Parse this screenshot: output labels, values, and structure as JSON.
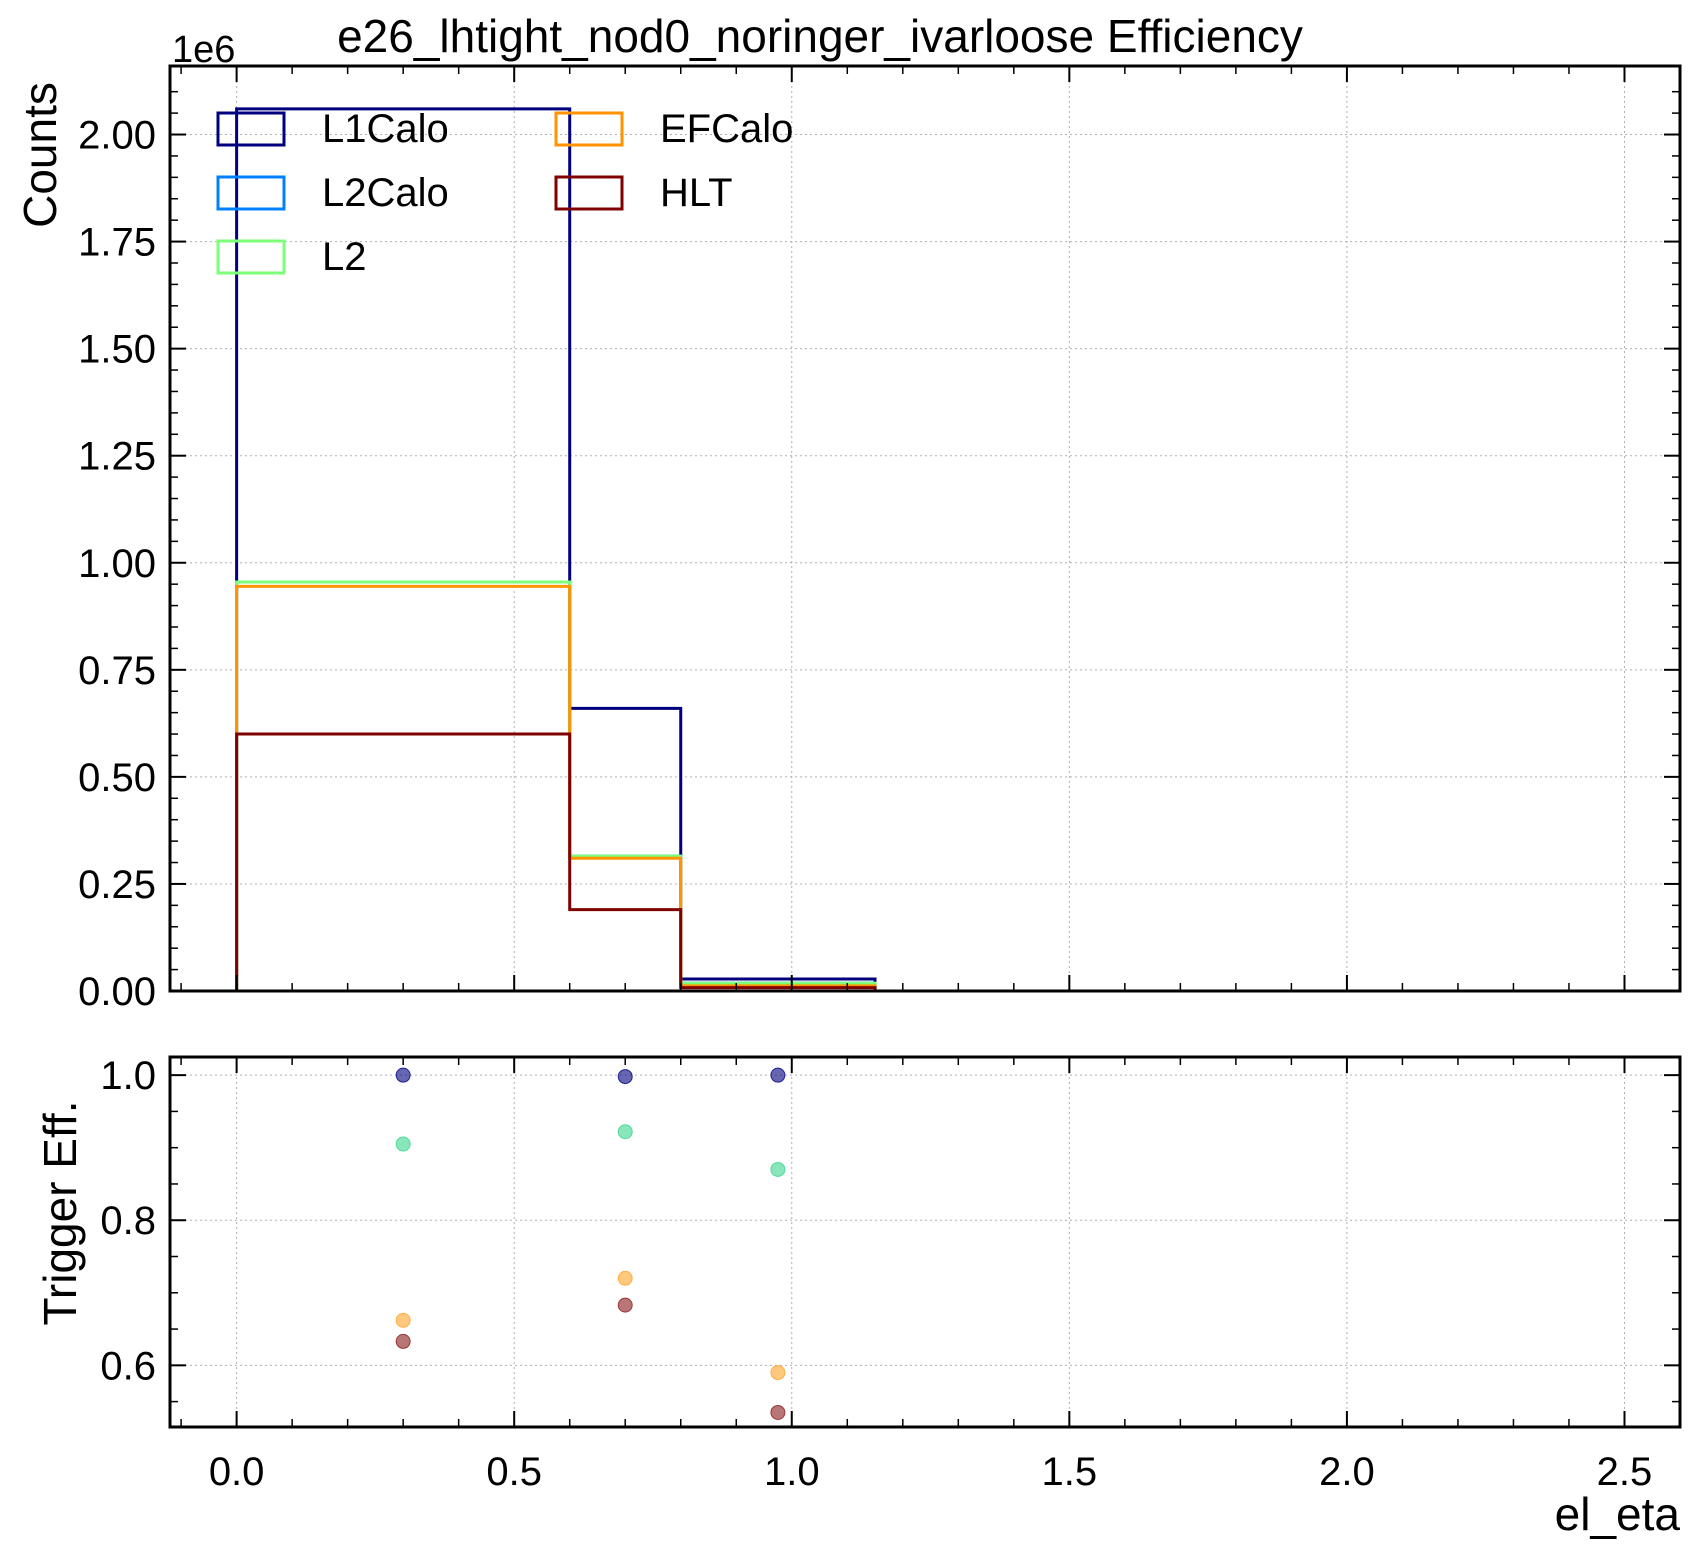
{
  "chart_data": [
    {
      "panel": "top",
      "type": "step-histogram",
      "title": "e26_lhtight_nod0_noringer_ivarloose Efficiency",
      "ylabel": "Counts",
      "xlabel": "",
      "offset_label": "1e6",
      "xlim": [
        -0.12,
        2.6
      ],
      "ylim": [
        0,
        2.16
      ],
      "y_scale_factor": 1000000,
      "grid": true,
      "legend_position": "upper left, 2 columns",
      "xticks": [
        "0.0",
        "0.5",
        "1.0",
        "1.5",
        "2.0",
        "2.5"
      ],
      "yticks": [
        "0.00",
        "0.25",
        "0.50",
        "0.75",
        "1.00",
        "1.25",
        "1.50",
        "1.75",
        "2.00"
      ],
      "bin_edges": [
        0.0,
        0.6,
        0.8,
        1.15
      ],
      "series": [
        {
          "name": "L1Calo",
          "color": "#00007f",
          "values": [
            2.06,
            0.66,
            0.028
          ]
        },
        {
          "name": "L2Calo",
          "color": "#0080ff",
          "values": [
            0.955,
            0.315,
            0.018
          ]
        },
        {
          "name": "L2",
          "color": "#7cff79",
          "values": [
            0.955,
            0.315,
            0.018
          ]
        },
        {
          "name": "EFCalo",
          "color": "#ff9400",
          "values": [
            0.945,
            0.31,
            0.012
          ]
        },
        {
          "name": "HLT",
          "color": "#7f0000",
          "values": [
            0.6,
            0.19,
            0.008
          ]
        }
      ]
    },
    {
      "panel": "bottom",
      "type": "scatter",
      "ylabel": "Trigger Eff.",
      "xlabel": "el_eta",
      "xlim": [
        -0.12,
        2.6
      ],
      "ylim": [
        0.515,
        1.025
      ],
      "grid": true,
      "xticks": [
        "0.0",
        "0.5",
        "1.0",
        "1.5",
        "2.0",
        "2.5"
      ],
      "yticks": [
        "0.6",
        "0.8",
        "1.0"
      ],
      "x": [
        0.3,
        0.7,
        0.975
      ],
      "series": [
        {
          "name": "L1Calo",
          "color": "#00007f",
          "values": [
            1.0,
            0.998,
            1.0
          ]
        },
        {
          "name": "L2",
          "color": "#3bd48c",
          "values": [
            0.905,
            0.922,
            0.87
          ]
        },
        {
          "name": "EFCalo",
          "color": "#ffa32a",
          "values": [
            0.662,
            0.72,
            0.59
          ]
        },
        {
          "name": "HLT",
          "color": "#8b1a1a",
          "values": [
            0.633,
            0.683,
            0.535
          ]
        }
      ]
    }
  ]
}
